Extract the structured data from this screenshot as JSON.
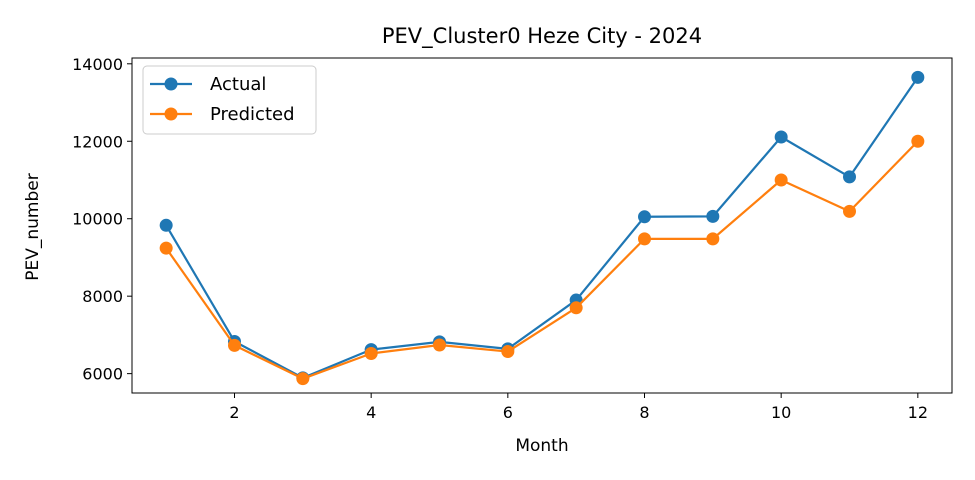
{
  "chart_data": {
    "type": "line",
    "title": "PEV_Cluster0 Heze City - 2024",
    "xlabel": "Month",
    "ylabel": "PEV_number",
    "x": [
      1,
      2,
      3,
      4,
      5,
      6,
      7,
      8,
      9,
      10,
      11,
      12
    ],
    "xticks": [
      2,
      4,
      6,
      8,
      10,
      12
    ],
    "yticks": [
      6000,
      8000,
      10000,
      12000,
      14000
    ],
    "xlim": [
      0.5,
      12.5
    ],
    "ylim": [
      5500,
      14150
    ],
    "grid": false,
    "legend": "top-left",
    "series": [
      {
        "name": "Actual",
        "color": "#1f77b4",
        "values": [
          9830,
          6830,
          5890,
          6620,
          6820,
          6640,
          7900,
          10050,
          10060,
          12110,
          11080,
          13650
        ]
      },
      {
        "name": "Predicted",
        "color": "#ff7f0e",
        "values": [
          9240,
          6730,
          5870,
          6520,
          6740,
          6570,
          7700,
          9480,
          9480,
          11000,
          10190,
          12000
        ]
      }
    ]
  }
}
